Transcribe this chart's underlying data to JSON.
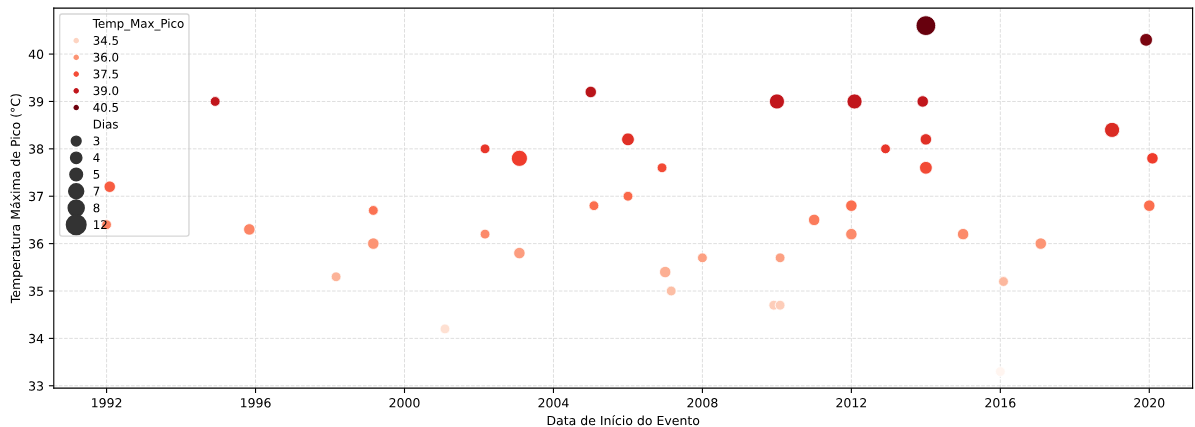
{
  "chart_data": {
    "type": "bubble",
    "xlabel": "Data de Início do Evento",
    "ylabel": "Temperatura Máxima de Pico (°C)",
    "legend_title": "Temp_Max_Pico",
    "annotations": [
      "Dias"
    ],
    "x": [
      "1994-12",
      "1992-02",
      "1992-01",
      "1995-11",
      "1999-03",
      "1999-03",
      "1998-03",
      "2001-02",
      "2002-03",
      "2003-02",
      "2002-03",
      "2003-02",
      "2005-01",
      "2005-02",
      "2006-01",
      "2006-01",
      "2006-12",
      "2007-01",
      "2007-03",
      "2008-01",
      "2010-01",
      "2011-01",
      "2010-02",
      "2009-12",
      "2010-02",
      "2014-01",
      "2019-12",
      "2012-02",
      "2013-12",
      "2014-01",
      "2012-12",
      "2014-01",
      "2019-01",
      "2020-02",
      "2012-01",
      "2020-01",
      "2012-01",
      "2015-01",
      "2017-02",
      "2016-02",
      "2016-01"
    ],
    "series": [
      {
        "values": [
          39.0,
          37.2,
          36.4,
          36.3,
          36.7,
          36.0,
          35.3,
          34.2,
          38.0,
          37.8,
          36.2,
          35.8,
          39.2,
          36.8,
          38.2,
          37.0,
          37.6,
          35.4,
          35.0,
          35.7,
          39.0,
          36.5,
          35.7,
          34.7,
          34.7,
          40.6,
          40.3,
          39.0,
          39.0,
          38.2,
          38.0,
          37.6,
          38.4,
          37.8,
          36.8,
          36.8,
          36.2,
          36.2,
          36.0,
          35.2,
          33.3
        ],
        "colors": [
          "#c1161c",
          "#f75c41",
          "#fc8060",
          "#fc8565",
          "#fb7252",
          "#fc9474",
          "#fcb398",
          "#fee0d2",
          "#e8362a",
          "#ef3c2c",
          "#fc8a6a",
          "#fc9d7f",
          "#b91419",
          "#fb6e4e",
          "#e03026",
          "#fa6849",
          "#f24a35",
          "#fcaf93",
          "#fcbea5",
          "#fca082",
          "#c1161c",
          "#fb7c5c",
          "#fca082",
          "#fdcdb9",
          "#fdcdb9",
          "#67000d",
          "#7a0510",
          "#c1161c",
          "#c1161c",
          "#e03026",
          "#e8362a",
          "#f24a35",
          "#da2b23",
          "#ef3c2c",
          "#fb6e4e",
          "#fb6e4e",
          "#fc8a6a",
          "#fc8a6a",
          "#fc9474",
          "#fcb89e",
          "#fff5f0"
        ],
        "sizes": [
          3,
          4,
          3,
          4,
          3,
          4,
          3,
          3,
          3,
          8,
          3,
          4,
          4,
          3,
          5,
          3,
          3,
          4,
          3,
          3,
          7,
          4,
          3,
          3,
          3,
          12,
          5,
          7,
          4,
          4,
          3,
          5,
          7,
          4,
          4,
          4,
          4,
          4,
          4,
          3,
          3
        ]
      },
      {
        "name": "34.5",
        "color": "#fdd4c2",
        "values": [
          null,
          null,
          null,
          null,
          null,
          null,
          null,
          null,
          null,
          null,
          null,
          null,
          null,
          null,
          null,
          null,
          null,
          null,
          null,
          null,
          null,
          null,
          null,
          null,
          null,
          null,
          null,
          null,
          null,
          null,
          null,
          null,
          null,
          null,
          null,
          null,
          null,
          null,
          null,
          null,
          null
        ]
      },
      {
        "name": "36.0",
        "color": "#fc9474",
        "values": [
          null,
          null,
          null,
          null,
          null,
          null,
          null,
          null,
          null,
          null,
          null,
          null,
          null,
          null,
          null,
          null,
          null,
          null,
          null,
          null,
          null,
          null,
          null,
          null,
          null,
          null,
          null,
          null,
          null,
          null,
          null,
          null,
          null,
          null,
          null,
          null,
          null,
          null,
          null,
          null,
          null
        ]
      },
      {
        "name": "37.5",
        "color": "#f44d38",
        "values": [
          null,
          null,
          null,
          null,
          null,
          null,
          null,
          null,
          null,
          null,
          null,
          null,
          null,
          null,
          null,
          null,
          null,
          null,
          null,
          null,
          null,
          null,
          null,
          null,
          null,
          null,
          null,
          null,
          null,
          null,
          null,
          null,
          null,
          null,
          null,
          null,
          null,
          null,
          null,
          null,
          null
        ]
      },
      {
        "name": "39.0",
        "color": "#c1161c",
        "values": [
          null,
          null,
          null,
          null,
          null,
          null,
          null,
          null,
          null,
          null,
          null,
          null,
          null,
          null,
          null,
          null,
          null,
          null,
          null,
          null,
          null,
          null,
          null,
          null,
          null,
          null,
          null,
          null,
          null,
          null,
          null,
          null,
          null,
          null,
          null,
          null,
          null,
          null,
          null,
          null,
          null
        ]
      },
      {
        "name": "40.5",
        "color": "#6e020e",
        "values": [
          null,
          null,
          null,
          null,
          null,
          null,
          null,
          null,
          null,
          null,
          null,
          null,
          null,
          null,
          null,
          null,
          null,
          null,
          null,
          null,
          null,
          null,
          null,
          null,
          null,
          null,
          null,
          null,
          null,
          null,
          null,
          null,
          null,
          null,
          null,
          null,
          null,
          null,
          null,
          null,
          null
        ]
      }
    ],
    "size_legend": [
      3,
      4,
      5,
      7,
      8,
      12
    ],
    "xlim": [
      "1990-08",
      "2021-03"
    ],
    "xticks": [
      {
        "value": "1992",
        "label": "1992"
      },
      {
        "value": "1996",
        "label": "1996"
      },
      {
        "value": "2000",
        "label": "2000"
      },
      {
        "value": "2004",
        "label": "2004"
      },
      {
        "value": "2008",
        "label": "2008"
      },
      {
        "value": "2012",
        "label": "2012"
      },
      {
        "value": "2016",
        "label": "2016"
      },
      {
        "value": "2020",
        "label": "2020"
      }
    ],
    "ylim": [
      32.95,
      40.97
    ],
    "yticks": [
      33,
      34,
      35,
      36,
      37,
      38,
      39,
      40
    ],
    "grid": true,
    "legend": "top left",
    "marker": "circle"
  }
}
